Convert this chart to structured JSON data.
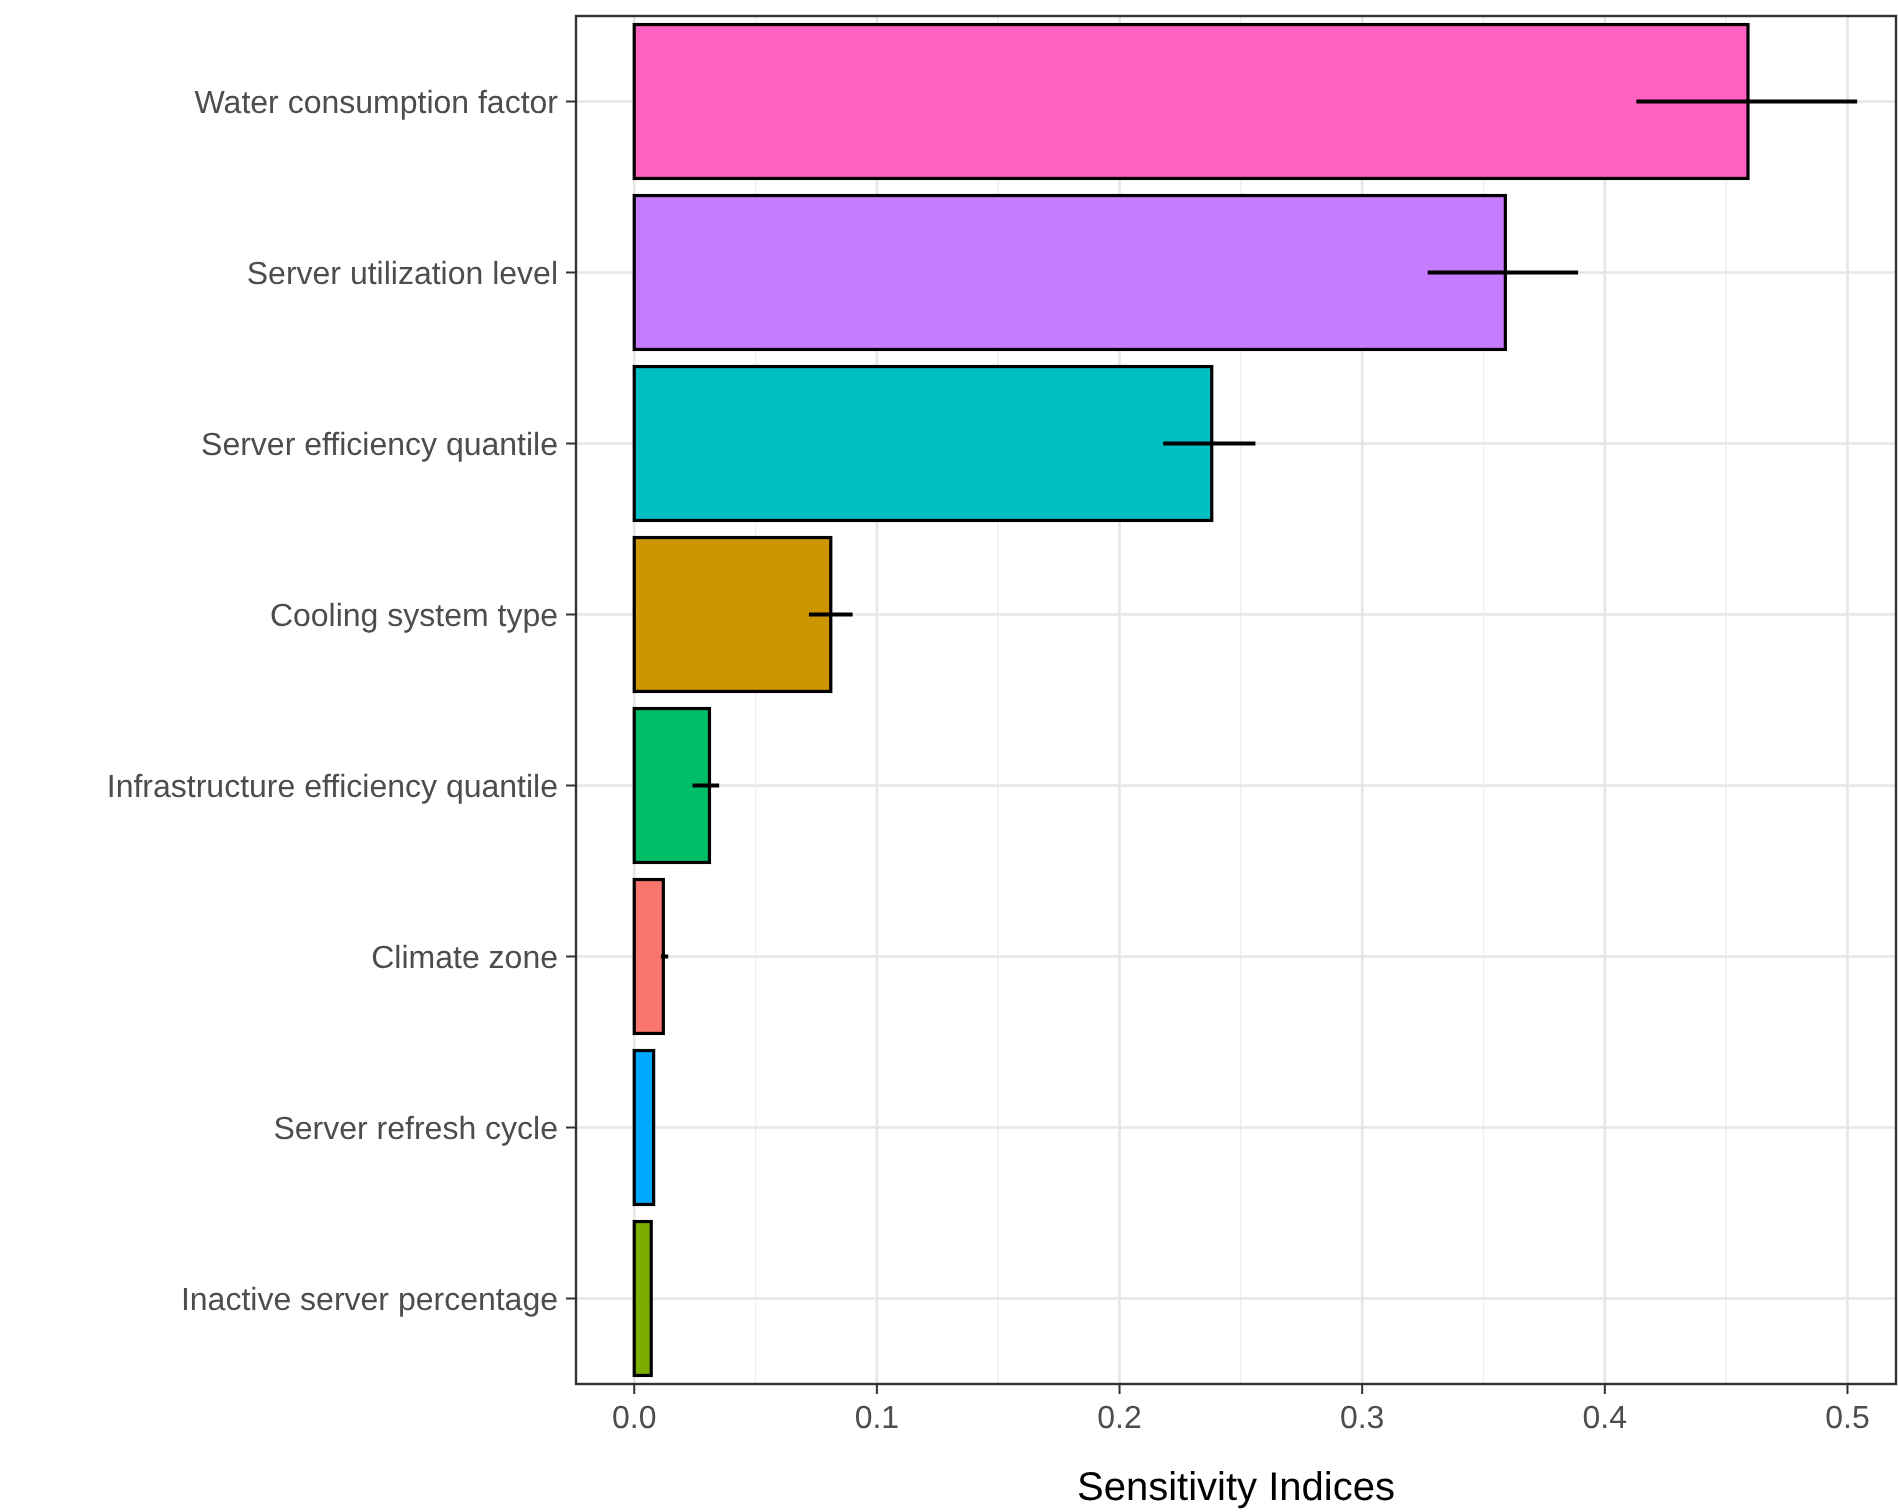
{
  "chart_data": {
    "type": "bar",
    "orientation": "horizontal",
    "xlabel": "Sensitivity Indices",
    "categories": [
      "Water consumption factor",
      "Server utilization level",
      "Server efficiency quantile",
      "Cooling system type",
      "Infrastructure efficiency quantile",
      "Climate zone",
      "Server refresh cycle",
      "Inactive server percentage"
    ],
    "values": [
      0.459,
      0.359,
      0.238,
      0.081,
      0.031,
      0.012,
      0.008,
      0.007
    ],
    "colors": [
      "#ff61c3",
      "#c77cff",
      "#00bfc4",
      "#cd9600",
      "#00be67",
      "#f8766d",
      "#00a9ff",
      "#7cae00"
    ],
    "errors": [
      [
        0.413,
        0.504
      ],
      [
        0.327,
        0.389
      ],
      [
        0.218,
        0.256
      ],
      [
        0.072,
        0.09
      ],
      [
        0.024,
        0.035
      ],
      [
        0.011,
        0.014
      ],
      null,
      null
    ],
    "xlim": [
      -0.024,
      0.52
    ],
    "xticks": [
      {
        "value": 0,
        "label": "0.0"
      },
      {
        "value": 0.1,
        "label": "0.1"
      },
      {
        "value": 0.2,
        "label": "0.2"
      },
      {
        "value": 0.3,
        "label": "0.3"
      },
      {
        "value": 0.4,
        "label": "0.4"
      },
      {
        "value": 0.5,
        "label": "0.5"
      }
    ],
    "grid": true
  }
}
